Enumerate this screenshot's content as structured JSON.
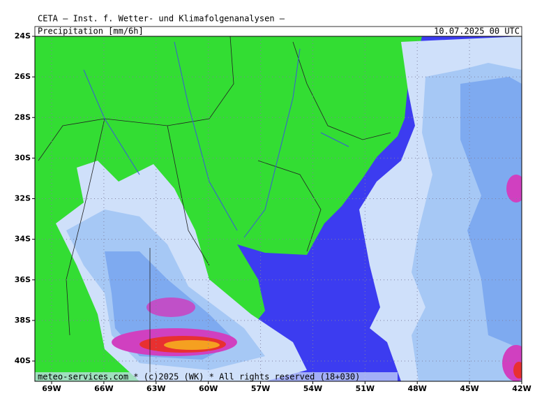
{
  "header": {
    "title": "CETA — Inst. f. Wetter- und Klimafolgenanalysen —",
    "variable": "Precipitation [mm/6h]",
    "valid_time": "10.07.2025 00 UTC"
  },
  "map": {
    "latitude_labels": [
      "24S",
      "26S",
      "28S",
      "30S",
      "32S",
      "34S",
      "36S",
      "38S",
      "40S"
    ],
    "longitude_labels": [
      "69W",
      "66W",
      "63W",
      "60W",
      "57W",
      "54W",
      "51W",
      "48W",
      "45W",
      "42W"
    ],
    "footer": "meteo-services.com * (c)2025 (WK) * All rights reserved (18+030)"
  }
}
